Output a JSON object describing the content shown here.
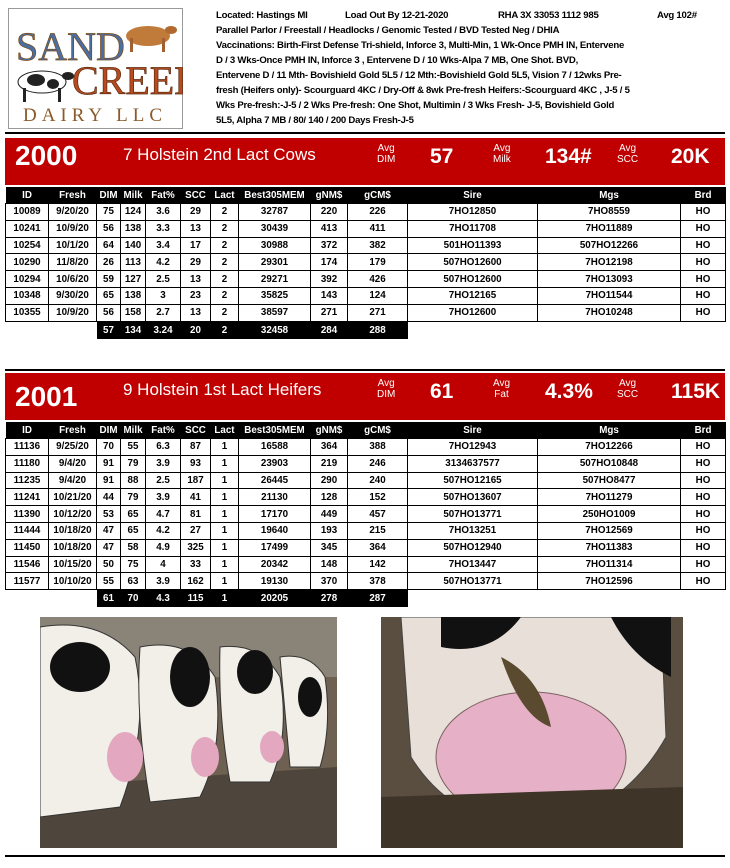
{
  "logo": {
    "line1": "SAND",
    "line2": "CREEK",
    "line3": "DAIRY LLC"
  },
  "header": {
    "located": "Located: Hastings MI",
    "load_out": "Load Out By 12-21-2020",
    "rha": "RHA 3X 33053 1112 985",
    "avg": "Avg 102#",
    "lines": [
      "Parallel Parlor / Freestall / Headlocks / Genomic Tested / BVD Tested Neg / DHIA",
      "Vaccinations: Birth-First Defense Tri-shield, Inforce 3, Multi-Min, 1 Wk-Once PMH IN, Entervene",
      "D / 3 Wks-Once PMH IN,  Inforce 3 , Entervene D / 10 Wks-Alpa 7 MB, One Shot. BVD,",
      "Entervene D / 11 Mth- Bovishield Gold 5L5 / 12 Mth:-Bovishield Gold 5L5, Vision 7 / 12wks Pre-",
      "fresh (Heifers only)- Scourguard 4KC / Dry-Off & 8wk Pre-fresh Heifers:-Scourguard 4KC ,  J-5 / 5",
      "Wks Pre-fresh:-J-5  / 2 Wks Pre-fresh: One Shot,  Multimin / 3 Wks Fresh- J-5, Bovishield Gold",
      "5L5, Alpha 7 MB / 80/ 140 / 200 Days Fresh-J-5"
    ]
  },
  "groups": [
    {
      "lot": "2000",
      "title": "7 Holstein 2nd Lact Cows",
      "stats": [
        {
          "label_top": "Avg",
          "label_bottom": "DIM",
          "value": "57"
        },
        {
          "label_top": "Avg",
          "label_bottom": "Milk",
          "value": "134#"
        },
        {
          "label_top": "Avg",
          "label_bottom": "SCC",
          "value": "20K"
        }
      ],
      "columns": [
        "ID",
        "Fresh",
        "DIM",
        "Milk",
        "Fat%",
        "SCC",
        "Lact",
        "Best305MEM",
        "gNM$",
        "gCM$",
        "Sire",
        "Mgs",
        "Brd"
      ],
      "rows": [
        [
          "10089",
          "9/20/20",
          "75",
          "124",
          "3.6",
          "29",
          "2",
          "32787",
          "220",
          "226",
          "7HO12850",
          "7HO8559",
          "HO"
        ],
        [
          "10241",
          "10/9/20",
          "56",
          "138",
          "3.3",
          "13",
          "2",
          "30439",
          "413",
          "411",
          "7HO11708",
          "7HO11889",
          "HO"
        ],
        [
          "10254",
          "10/1/20",
          "64",
          "140",
          "3.4",
          "17",
          "2",
          "30988",
          "372",
          "382",
          "501HO11393",
          "507HO12266",
          "HO"
        ],
        [
          "10290",
          "11/8/20",
          "26",
          "113",
          "4.2",
          "29",
          "2",
          "29301",
          "174",
          "179",
          "507HO12600",
          "7HO12198",
          "HO"
        ],
        [
          "10294",
          "10/6/20",
          "59",
          "127",
          "2.5",
          "13",
          "2",
          "29271",
          "392",
          "426",
          "507HO12600",
          "7HO13093",
          "HO"
        ],
        [
          "10348",
          "9/30/20",
          "65",
          "138",
          "3",
          "23",
          "2",
          "35825",
          "143",
          "124",
          "7HO12165",
          "7HO11544",
          "HO"
        ],
        [
          "10355",
          "10/9/20",
          "56",
          "158",
          "2.7",
          "13",
          "2",
          "38597",
          "271",
          "271",
          "7HO12600",
          "7HO10248",
          "HO"
        ]
      ],
      "averages": [
        "57",
        "134",
        "3.24",
        "20",
        "2",
        "32458",
        "284",
        "288"
      ]
    },
    {
      "lot": "2001",
      "title": "9 Holstein 1st Lact Heifers",
      "stats": [
        {
          "label_top": "Avg",
          "label_bottom": "DIM",
          "value": "61"
        },
        {
          "label_top": "Avg",
          "label_bottom": "Fat",
          "value": "4.3%"
        },
        {
          "label_top": "Avg",
          "label_bottom": "SCC",
          "value": "115K"
        }
      ],
      "columns": [
        "ID",
        "Fresh",
        "DIM",
        "Milk",
        "Fat%",
        "SCC",
        "Lact",
        "Best305MEM",
        "gNM$",
        "gCM$",
        "Sire",
        "Mgs",
        "Brd"
      ],
      "rows": [
        [
          "11136",
          "9/25/20",
          "70",
          "55",
          "6.3",
          "87",
          "1",
          "16588",
          "364",
          "388",
          "7HO12943",
          "7HO12266",
          "HO"
        ],
        [
          "11180",
          "9/4/20",
          "91",
          "79",
          "3.9",
          "93",
          "1",
          "23903",
          "219",
          "246",
          "3134637577",
          "507HO10848",
          "HO"
        ],
        [
          "11235",
          "9/4/20",
          "91",
          "88",
          "2.5",
          "187",
          "1",
          "26445",
          "290",
          "240",
          "507HO12165",
          "507HO8477",
          "HO"
        ],
        [
          "11241",
          "10/21/20",
          "44",
          "79",
          "3.9",
          "41",
          "1",
          "21130",
          "128",
          "152",
          "507HO13607",
          "7HO11279",
          "HO"
        ],
        [
          "11390",
          "10/12/20",
          "53",
          "65",
          "4.7",
          "81",
          "1",
          "17170",
          "449",
          "457",
          "507HO13771",
          "250HO1009",
          "HO"
        ],
        [
          "11444",
          "10/18/20",
          "47",
          "65",
          "4.2",
          "27",
          "1",
          "19640",
          "193",
          "215",
          "7HO13251",
          "7HO12569",
          "HO"
        ],
        [
          "11450",
          "10/18/20",
          "47",
          "58",
          "4.9",
          "325",
          "1",
          "17499",
          "345",
          "364",
          "507HO12940",
          "7HO11383",
          "HO"
        ],
        [
          "11546",
          "10/15/20",
          "50",
          "75",
          "4",
          "33",
          "1",
          "20342",
          "148",
          "142",
          "7HO13447",
          "7HO11314",
          "HO"
        ],
        [
          "11577",
          "10/10/20",
          "55",
          "63",
          "3.9",
          "162",
          "1",
          "19130",
          "370",
          "378",
          "507HO13771",
          "7HO12596",
          "HO"
        ]
      ],
      "averages": [
        "61",
        "70",
        "4.3",
        "115",
        "1",
        "20205",
        "278",
        "287"
      ]
    }
  ]
}
